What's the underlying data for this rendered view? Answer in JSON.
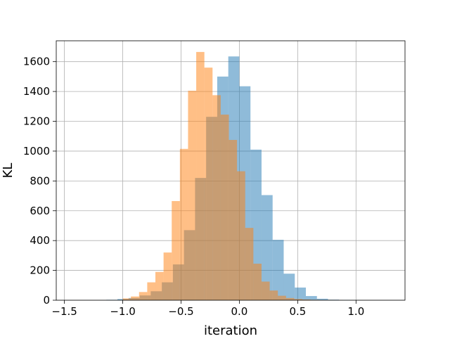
{
  "chart_data": {
    "type": "bar",
    "xlabel": "iteration",
    "ylabel": "KL",
    "xlim": [
      -1.57,
      1.42
    ],
    "ylim": [
      0,
      1740
    ],
    "grid": true,
    "xticks": [
      -1.5,
      -1.0,
      -0.5,
      0.0,
      0.5,
      1.0
    ],
    "xtick_labels": [
      "−1.5",
      "−1.0",
      "−0.5",
      "0.0",
      "0.5",
      "1.0"
    ],
    "yticks": [
      0,
      200,
      400,
      600,
      800,
      1000,
      1200,
      1400,
      1600
    ],
    "ytick_labels": [
      "0",
      "200",
      "400",
      "600",
      "800",
      "1000",
      "1200",
      "1400",
      "1600"
    ],
    "series": [
      {
        "color": "#1f77b4",
        "opacity": 0.5,
        "bins": [
          {
            "x0": -1.14,
            "x1": -1.045,
            "value": 3
          },
          {
            "x0": -1.045,
            "x1": -0.95,
            "value": 8
          },
          {
            "x0": -0.95,
            "x1": -0.855,
            "value": 15
          },
          {
            "x0": -0.855,
            "x1": -0.76,
            "value": 32
          },
          {
            "x0": -0.76,
            "x1": -0.665,
            "value": 60
          },
          {
            "x0": -0.665,
            "x1": -0.57,
            "value": 120
          },
          {
            "x0": -0.57,
            "x1": -0.475,
            "value": 240
          },
          {
            "x0": -0.475,
            "x1": -0.38,
            "value": 470
          },
          {
            "x0": -0.38,
            "x1": -0.285,
            "value": 820
          },
          {
            "x0": -0.285,
            "x1": -0.19,
            "value": 1230
          },
          {
            "x0": -0.19,
            "x1": -0.095,
            "value": 1500
          },
          {
            "x0": -0.095,
            "x1": 0.0,
            "value": 1635
          },
          {
            "x0": 0.0,
            "x1": 0.095,
            "value": 1435
          },
          {
            "x0": 0.095,
            "x1": 0.19,
            "value": 1010
          },
          {
            "x0": 0.19,
            "x1": 0.285,
            "value": 705
          },
          {
            "x0": 0.285,
            "x1": 0.38,
            "value": 405
          },
          {
            "x0": 0.38,
            "x1": 0.475,
            "value": 178
          },
          {
            "x0": 0.475,
            "x1": 0.57,
            "value": 85
          },
          {
            "x0": 0.57,
            "x1": 0.665,
            "value": 28
          },
          {
            "x0": 0.665,
            "x1": 0.76,
            "value": 10
          },
          {
            "x0": 0.76,
            "x1": 0.855,
            "value": 4
          },
          {
            "x0": 0.855,
            "x1": 0.95,
            "value": 2
          },
          {
            "x0": 0.95,
            "x1": 1.045,
            "value": 1
          }
        ]
      },
      {
        "color": "#ff7f0e",
        "opacity": 0.5,
        "bins": [
          {
            "x0": -1.0,
            "x1": -0.93,
            "value": 12
          },
          {
            "x0": -0.93,
            "x1": -0.86,
            "value": 25
          },
          {
            "x0": -0.86,
            "x1": -0.79,
            "value": 55
          },
          {
            "x0": -0.79,
            "x1": -0.72,
            "value": 120
          },
          {
            "x0": -0.72,
            "x1": -0.65,
            "value": 190
          },
          {
            "x0": -0.65,
            "x1": -0.58,
            "value": 320
          },
          {
            "x0": -0.58,
            "x1": -0.51,
            "value": 665
          },
          {
            "x0": -0.51,
            "x1": -0.44,
            "value": 1015
          },
          {
            "x0": -0.44,
            "x1": -0.37,
            "value": 1405
          },
          {
            "x0": -0.37,
            "x1": -0.3,
            "value": 1665
          },
          {
            "x0": -0.3,
            "x1": -0.23,
            "value": 1560
          },
          {
            "x0": -0.23,
            "x1": -0.16,
            "value": 1375
          },
          {
            "x0": -0.16,
            "x1": -0.09,
            "value": 1245
          },
          {
            "x0": -0.09,
            "x1": -0.02,
            "value": 1075
          },
          {
            "x0": -0.02,
            "x1": 0.05,
            "value": 865
          },
          {
            "x0": 0.05,
            "x1": 0.12,
            "value": 485
          },
          {
            "x0": 0.12,
            "x1": 0.19,
            "value": 245
          },
          {
            "x0": 0.19,
            "x1": 0.26,
            "value": 125
          },
          {
            "x0": 0.26,
            "x1": 0.33,
            "value": 65
          },
          {
            "x0": 0.33,
            "x1": 0.4,
            "value": 30
          },
          {
            "x0": 0.4,
            "x1": 0.47,
            "value": 15
          },
          {
            "x0": 0.47,
            "x1": 0.54,
            "value": 8
          },
          {
            "x0": 0.54,
            "x1": 0.61,
            "value": 5
          },
          {
            "x0": 0.61,
            "x1": 0.68,
            "value": 3
          },
          {
            "x0": 0.68,
            "x1": 0.75,
            "value": 2
          },
          {
            "x0": 0.75,
            "x1": 0.82,
            "value": 2
          },
          {
            "x0": 0.82,
            "x1": 0.89,
            "value": 1
          }
        ]
      }
    ]
  }
}
